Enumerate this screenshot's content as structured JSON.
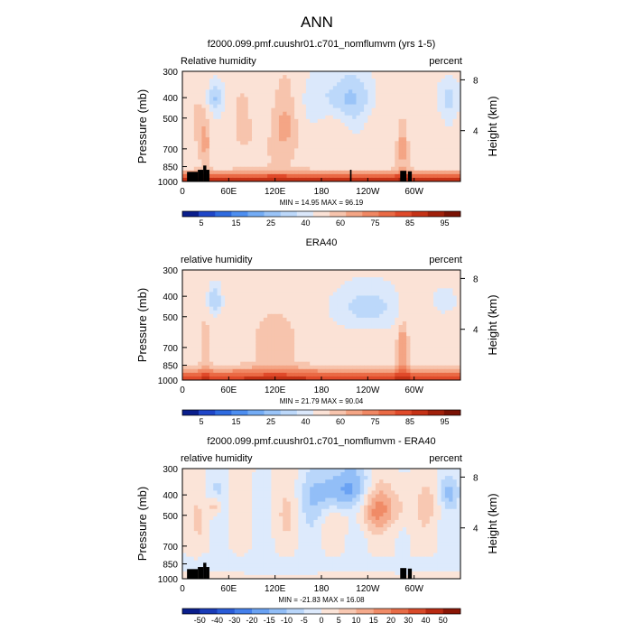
{
  "page_title": "ANN",
  "chart_data": [
    {
      "type": "heatmap",
      "title": "f2000.099.pmf.cuushr01.c701_nomflumvm (yrs 1-5)",
      "variable_label": "Relative humidity",
      "units_label": "percent",
      "ylabel": "Pressure (mb)",
      "y2label": "Height (km)",
      "x_ticks": [
        "0",
        "60E",
        "120E",
        "180",
        "120W",
        "60W"
      ],
      "x_tick_values": [
        0,
        60,
        120,
        180,
        240,
        300
      ],
      "xlim": [
        0,
        360
      ],
      "y_ticks": [
        "300",
        "400",
        "500",
        "700",
        "850",
        "1000"
      ],
      "y_tick_values": [
        300,
        400,
        500,
        700,
        850,
        1000
      ],
      "ylim": [
        300,
        1000
      ],
      "y_scale": "log",
      "y2_ticks": [
        "8",
        "4"
      ],
      "y2_tick_values": [
        8,
        4
      ],
      "stats": "MIN =   14.95   MAX =   96.19",
      "min": 14.95,
      "max": 96.19,
      "colorbar_labels": [
        "5",
        "15",
        "25",
        "40",
        "60",
        "75",
        "85",
        "95"
      ],
      "colorbar_colors": [
        "#0a1e8c",
        "#1f46c8",
        "#2f6be0",
        "#4d8ef0",
        "#74acf5",
        "#9ac4f8",
        "#bcd8fa",
        "#dbe8fb",
        "#fbe2d6",
        "#f7c4ad",
        "#f4a585",
        "#f08763",
        "#ea6a45",
        "#e04a2a",
        "#c53216",
        "#a0200a",
        "#7a1204"
      ],
      "masked_regions": [
        [
          6,
          20,
          900,
          1000
        ],
        [
          20,
          27,
          880,
          1000
        ],
        [
          27,
          31,
          840,
          1000
        ],
        [
          31,
          35,
          880,
          1000
        ],
        [
          217,
          219,
          880,
          1000
        ],
        [
          282,
          290,
          890,
          1000
        ],
        [
          292,
          297,
          895,
          1000
        ]
      ]
    },
    {
      "type": "heatmap",
      "title": "ERA40",
      "variable_label": "relative humidity",
      "units_label": "percent",
      "ylabel": "Pressure (mb)",
      "y2label": "Height (km)",
      "x_ticks": [
        "0",
        "60E",
        "120E",
        "180",
        "120W",
        "60W"
      ],
      "x_tick_values": [
        0,
        60,
        120,
        180,
        240,
        300
      ],
      "xlim": [
        0,
        360
      ],
      "y_ticks": [
        "300",
        "400",
        "500",
        "700",
        "850",
        "1000"
      ],
      "y_tick_values": [
        300,
        400,
        500,
        700,
        850,
        1000
      ],
      "ylim": [
        300,
        1000
      ],
      "y_scale": "log",
      "y2_ticks": [
        "8",
        "4"
      ],
      "y2_tick_values": [
        8,
        4
      ],
      "stats": "MIN =   21.79   MAX =   90.04",
      "min": 21.79,
      "max": 90.04,
      "colorbar_labels": [
        "5",
        "15",
        "25",
        "40",
        "60",
        "75",
        "85",
        "95"
      ],
      "colorbar_colors": [
        "#0a1e8c",
        "#1f46c8",
        "#2f6be0",
        "#4d8ef0",
        "#74acf5",
        "#9ac4f8",
        "#bcd8fa",
        "#dbe8fb",
        "#fbe2d6",
        "#f7c4ad",
        "#f4a585",
        "#f08763",
        "#ea6a45",
        "#e04a2a",
        "#c53216",
        "#a0200a",
        "#7a1204"
      ],
      "masked_regions": []
    },
    {
      "type": "heatmap",
      "title": "f2000.099.pmf.cuushr01.c701_nomflumvm - ERA40",
      "variable_label": "relative humidity",
      "units_label": "percent",
      "ylabel": "Pressure (mb)",
      "y2label": "Height (km)",
      "x_ticks": [
        "0",
        "60E",
        "120E",
        "180",
        "120W",
        "60W"
      ],
      "x_tick_values": [
        0,
        60,
        120,
        180,
        240,
        300
      ],
      "xlim": [
        0,
        360
      ],
      "y_ticks": [
        "300",
        "400",
        "500",
        "700",
        "850",
        "1000"
      ],
      "y_tick_values": [
        300,
        400,
        500,
        700,
        850,
        1000
      ],
      "ylim": [
        300,
        1000
      ],
      "y_scale": "log",
      "y2_ticks": [
        "8",
        "4"
      ],
      "y2_tick_values": [
        8,
        4
      ],
      "stats": "MIN =  -21.83   MAX =   16.08",
      "min": -21.83,
      "max": 16.08,
      "colorbar_labels": [
        "-50",
        "-40",
        "-30",
        "-20",
        "-15",
        "-10",
        "-5",
        "0",
        "5",
        "10",
        "15",
        "20",
        "30",
        "40",
        "50"
      ],
      "colorbar_colors": [
        "#0a1e8c",
        "#1a3cb8",
        "#2a5cd8",
        "#4580ec",
        "#6aa2f3",
        "#92bef7",
        "#b9d6fa",
        "#ddeafc",
        "#fbe4d8",
        "#f8c8b2",
        "#f5aa8c",
        "#f08b67",
        "#e86c47",
        "#d84a2a",
        "#b82a12",
        "#8a1606"
      ],
      "masked_regions": [
        [
          6,
          20,
          900,
          1000
        ],
        [
          20,
          27,
          880,
          1000
        ],
        [
          27,
          31,
          840,
          1000
        ],
        [
          31,
          35,
          880,
          1000
        ],
        [
          282,
          290,
          890,
          1000
        ],
        [
          292,
          297,
          895,
          1000
        ]
      ]
    }
  ]
}
